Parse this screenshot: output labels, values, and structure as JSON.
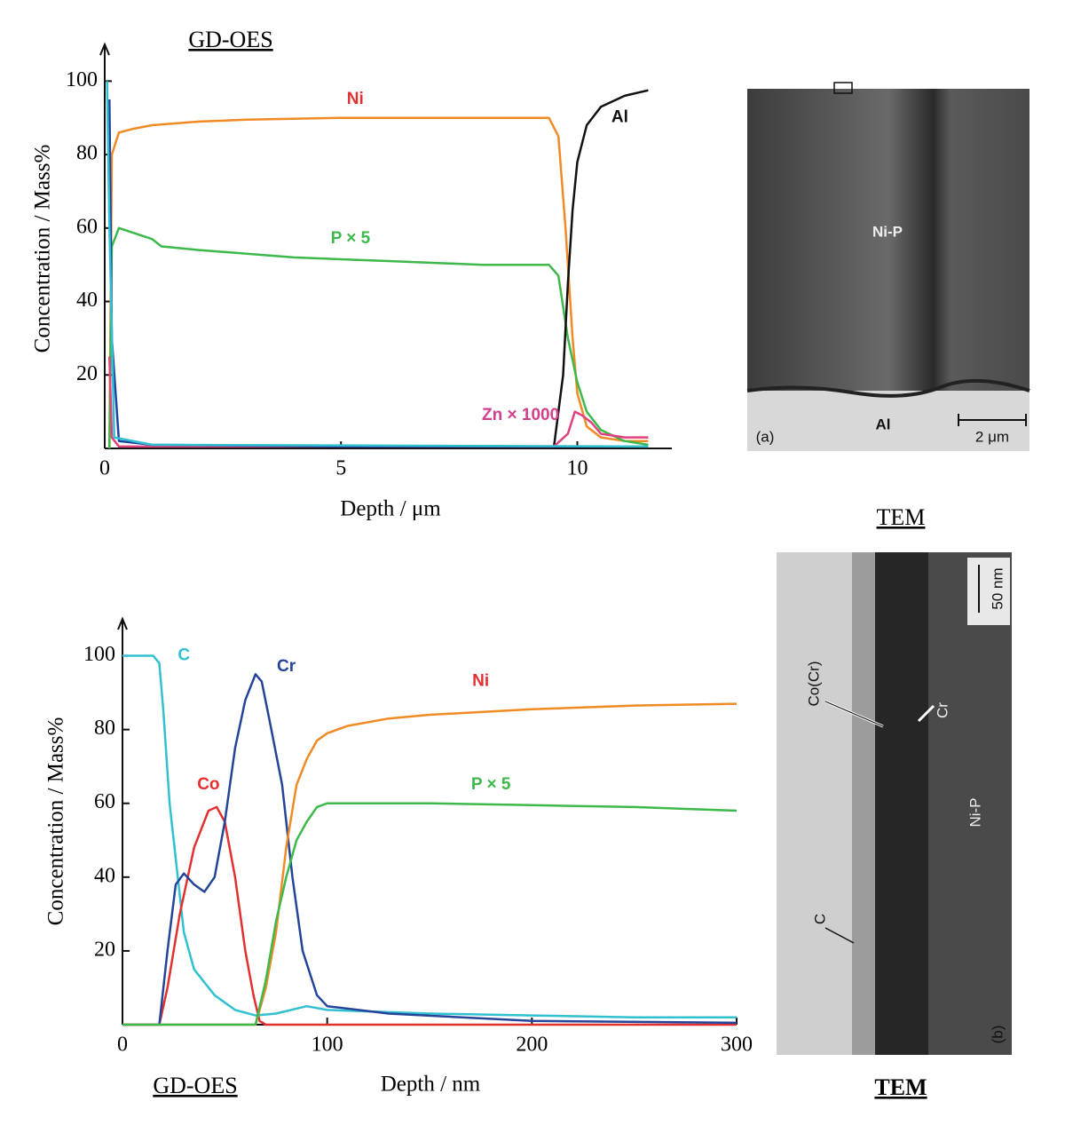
{
  "chart_data": [
    {
      "type": "line",
      "title": "GD-OES",
      "x_label": "Depth / μm",
      "y_label": "Concentration / Mass%",
      "xlim": [
        0,
        12
      ],
      "ylim": [
        0,
        110
      ],
      "xticks": [
        0,
        5,
        10
      ],
      "yticks": [
        20,
        40,
        60,
        80,
        100
      ],
      "series": [
        {
          "name": "Ni",
          "color": "#f08a24",
          "label_color": "#e23030",
          "x": [
            0.1,
            0.15,
            0.3,
            0.6,
            1,
            2,
            3,
            5,
            7,
            9,
            9.4,
            9.6,
            9.75,
            9.9,
            10,
            10.2,
            10.5,
            11,
            11.5
          ],
          "values": [
            0,
            80,
            86,
            87,
            88,
            89,
            89.5,
            90,
            90,
            90,
            90,
            85,
            60,
            30,
            15,
            6,
            3,
            2,
            2
          ]
        },
        {
          "name": "P × 5",
          "color": "#3db84a",
          "label_color": "#3db84a",
          "x": [
            0.1,
            0.15,
            0.3,
            1,
            1.2,
            2,
            4,
            6,
            8,
            9.4,
            9.6,
            9.8,
            10,
            10.2,
            10.5,
            11,
            11.5
          ],
          "values": [
            0,
            55,
            60,
            57,
            55,
            54,
            52,
            51,
            50,
            50,
            47,
            30,
            18,
            10,
            5,
            2,
            1
          ]
        },
        {
          "name": "Al",
          "color": "#111111",
          "label_color": "#111111",
          "x": [
            9.5,
            9.7,
            9.8,
            9.9,
            10,
            10.2,
            10.5,
            11,
            11.5
          ],
          "values": [
            0,
            20,
            45,
            65,
            78,
            88,
            93,
            96,
            97.5
          ]
        },
        {
          "name": "Zn × 1000",
          "color": "#e0407e",
          "label_color": "#d0408e",
          "x": [
            0.1,
            0.15,
            0.3,
            9.5,
            9.8,
            9.95,
            10.1,
            10.3,
            10.5,
            11,
            11.5
          ],
          "values": [
            25,
            3,
            0.5,
            0.5,
            4,
            10,
            9,
            7,
            4,
            3,
            3
          ]
        },
        {
          "color": "#2040a0",
          "x": [
            0.1,
            0.15,
            0.3,
            1,
            5,
            11.5
          ],
          "values": [
            95,
            30,
            2,
            1,
            0.5,
            0.5
          ]
        },
        {
          "color": "#30c0d0",
          "x": [
            0.05,
            0.1,
            0.2,
            1,
            11.5
          ],
          "values": [
            100,
            60,
            3,
            1,
            0.5
          ]
        }
      ]
    },
    {
      "type": "line",
      "title": "GD-OES",
      "x_label": "Depth / nm",
      "y_label": "Concentration / Mass%",
      "xlim": [
        0,
        300
      ],
      "ylim": [
        0,
        110
      ],
      "xticks": [
        0,
        100,
        200,
        300
      ],
      "yticks": [
        20,
        40,
        60,
        80,
        100
      ],
      "series": [
        {
          "name": "C",
          "color": "#30c0d0",
          "label_color": "#30c0d0",
          "x": [
            0,
            15,
            18,
            20,
            23,
            27,
            30,
            35,
            45,
            55,
            65,
            75,
            90,
            100,
            150,
            200,
            250,
            300
          ],
          "values": [
            100,
            100,
            98,
            85,
            60,
            40,
            25,
            15,
            8,
            4,
            2.5,
            3,
            5,
            4,
            3,
            2.5,
            2,
            2
          ]
        },
        {
          "name": "Co",
          "color": "#e23030",
          "label_color": "#e23030",
          "x": [
            0,
            18,
            22,
            28,
            35,
            42,
            46,
            50,
            55,
            60,
            64,
            67,
            70,
            300
          ],
          "values": [
            0,
            0,
            10,
            30,
            48,
            58,
            59,
            55,
            40,
            20,
            8,
            1,
            0,
            0
          ]
        },
        {
          "name": "Cr",
          "color": "#24449a",
          "label_color": "#24449a",
          "x": [
            0,
            18,
            22,
            26,
            30,
            35,
            40,
            45,
            50,
            55,
            60,
            65,
            68,
            72,
            78,
            83,
            88,
            95,
            100,
            130,
            200,
            300
          ],
          "values": [
            0,
            0,
            20,
            38,
            41,
            38,
            36,
            40,
            55,
            75,
            88,
            95,
            93,
            82,
            65,
            40,
            20,
            8,
            5,
            3,
            1,
            0.5
          ]
        },
        {
          "name": "Ni",
          "color": "#f08a24",
          "label_color": "#e23030",
          "x": [
            0,
            65,
            70,
            75,
            80,
            85,
            90,
            95,
            100,
            110,
            130,
            150,
            200,
            250,
            300
          ],
          "values": [
            0,
            0,
            10,
            25,
            48,
            65,
            72,
            77,
            79,
            81,
            83,
            84,
            85.5,
            86.5,
            87
          ]
        },
        {
          "name": "P × 5",
          "color": "#3db84a",
          "label_color": "#3db84a",
          "x": [
            0,
            65,
            70,
            75,
            80,
            85,
            90,
            95,
            100,
            150,
            200,
            250,
            300
          ],
          "values": [
            0,
            0,
            12,
            28,
            40,
            50,
            55,
            59,
            60,
            60,
            59.5,
            59,
            58
          ]
        }
      ]
    }
  ],
  "micrograph_a": {
    "region_top": "Ni-P",
    "region_bottom": "Al",
    "scale_bar": "2 μm",
    "panel": "(a)"
  },
  "micrograph_b": {
    "heading": "TEM",
    "caption": "TEM",
    "scale_bar": "50 nm",
    "layer_coating": "Co(Cr)",
    "layer_cr": "Cr",
    "region_substrate": "Ni-P",
    "layer_c": "C",
    "panel": "(b)"
  }
}
